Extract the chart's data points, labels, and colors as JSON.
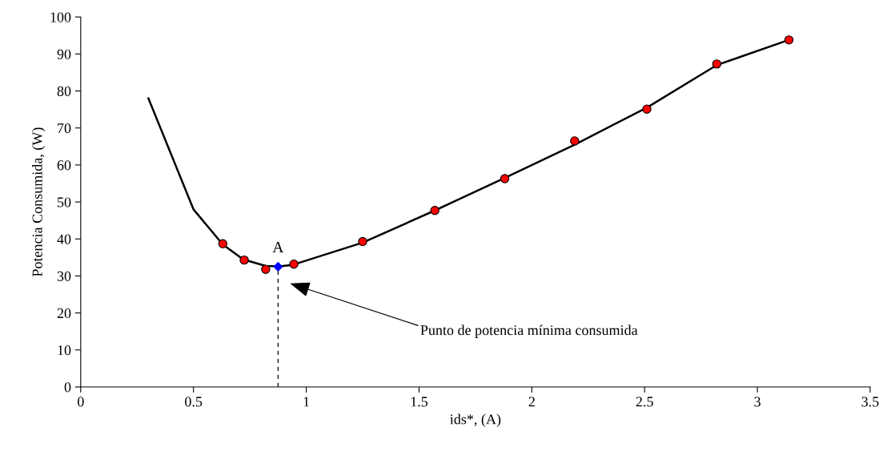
{
  "chart_data": {
    "type": "line",
    "xlabel": "ids*, (A)",
    "ylabel": "Potencia Consumida, (W)",
    "xlim": [
      0,
      3.5
    ],
    "xticks": [
      0,
      0.5,
      1,
      1.5,
      2,
      2.5,
      3,
      3.5
    ],
    "ylim": [
      0,
      100
    ],
    "yticks": [
      0,
      10,
      20,
      30,
      40,
      50,
      60,
      70,
      80,
      90,
      100
    ],
    "grid": false,
    "legend": false,
    "series": [
      {
        "color": "#000000",
        "marker": "none",
        "line_style": "solid",
        "x": [
          0.3,
          0.5,
          0.63,
          0.72,
          0.82,
          0.88,
          0.94,
          1.25,
          1.57,
          1.88,
          2.19,
          2.51,
          2.82,
          3.14
        ],
        "values": [
          78,
          48,
          38.5,
          34.5,
          32.7,
          32.6,
          33,
          39,
          47.7,
          56.5,
          65.5,
          75.5,
          87,
          93.8
        ]
      },
      {
        "type": "scatter",
        "color": "#ff0000",
        "marker": "circle",
        "x": [
          0.63,
          0.725,
          0.82,
          0.945,
          1.25,
          1.57,
          1.88,
          2.19,
          2.51,
          2.82,
          3.14
        ],
        "values": [
          38.7,
          34.3,
          31.8,
          33.2,
          39.3,
          47.7,
          56.3,
          66.5,
          75.1,
          87.3,
          93.8
        ]
      },
      {
        "type": "line",
        "color": "#000000",
        "marker": "none",
        "line_style": "dashed",
        "x": [
          0.875,
          0.875
        ],
        "values": [
          0,
          32.5
        ]
      },
      {
        "type": "scatter",
        "color": "#0000ff",
        "marker": "diamond",
        "x": [
          0.875
        ],
        "values": [
          32.5
        ]
      }
    ],
    "annotations": [
      {
        "text": "A",
        "x": 0.875,
        "y": 32.5
      },
      "Punto de potencia mínima consumida"
    ]
  }
}
